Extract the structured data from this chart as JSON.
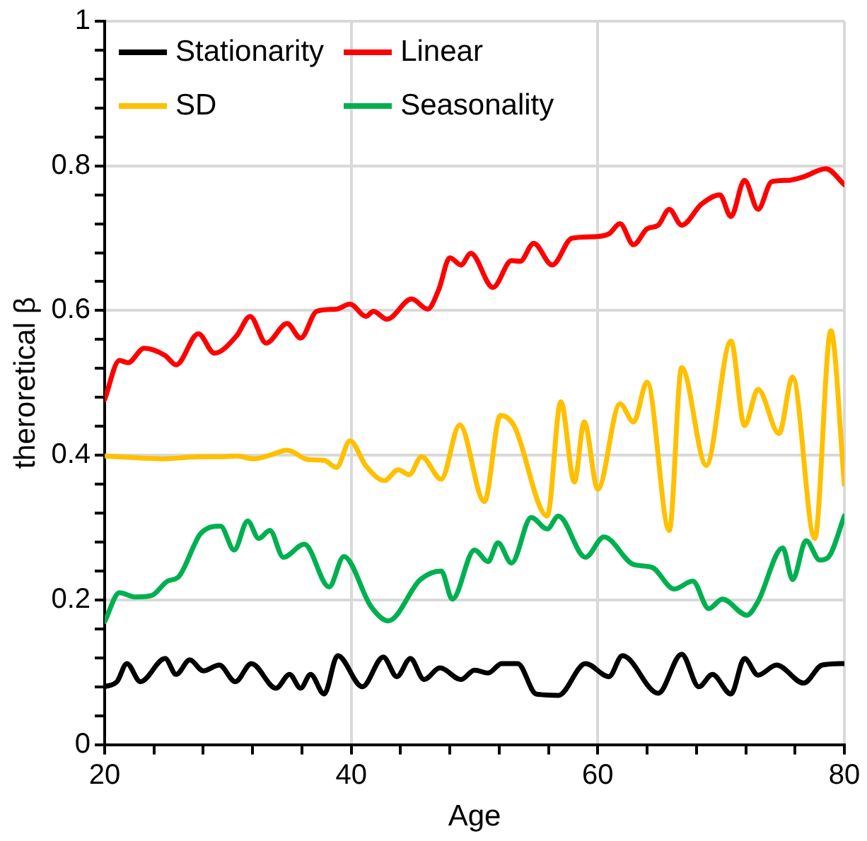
{
  "chart_data": {
    "type": "line",
    "xlabel": "Age",
    "ylabel": "theroretical β",
    "xlim": [
      20,
      80
    ],
    "ylim": [
      0,
      1
    ],
    "xticks": [
      20,
      {
        "value": 24,
        "label": null
      },
      {
        "value": 28,
        "label": null
      },
      {
        "value": 32,
        "label": null
      },
      {
        "value": 36,
        "label": null
      },
      40,
      {
        "value": 44,
        "label": null
      },
      {
        "value": 48,
        "label": null
      },
      {
        "value": 52,
        "label": null
      },
      {
        "value": 56,
        "label": null
      },
      60,
      {
        "value": 64,
        "label": null
      },
      {
        "value": 68,
        "label": null
      },
      {
        "value": 72,
        "label": null
      },
      {
        "value": 76,
        "label": null
      },
      80
    ],
    "yticks": [
      0,
      {
        "value": 0.04,
        "label": null
      },
      {
        "value": 0.08,
        "label": null
      },
      {
        "value": 0.12,
        "label": null
      },
      {
        "value": 0.16,
        "label": null
      },
      0.2,
      {
        "value": 0.24,
        "label": null
      },
      {
        "value": 0.28,
        "label": null
      },
      {
        "value": 0.32,
        "label": null
      },
      {
        "value": 0.36,
        "label": null
      },
      0.4,
      {
        "value": 0.44,
        "label": null
      },
      {
        "value": 0.48,
        "label": null
      },
      {
        "value": 0.52,
        "label": null
      },
      {
        "value": 0.56,
        "label": null
      },
      0.6,
      {
        "value": 0.64,
        "label": null
      },
      {
        "value": 0.68,
        "label": null
      },
      {
        "value": 0.72,
        "label": null
      },
      {
        "value": 0.76,
        "label": null
      },
      0.8,
      {
        "value": 0.84,
        "label": null
      },
      {
        "value": 0.88,
        "label": null
      },
      {
        "value": 0.92,
        "label": null
      },
      {
        "value": 0.96,
        "label": null
      },
      1
    ],
    "grid": true,
    "legend": "top",
    "marker": "none",
    "line_style": "solid",
    "series": [
      {
        "name": "Stationarity",
        "color": "#000000",
        "x": [
          20,
          21,
          21.8,
          22.9,
          24.9,
          25.8,
          26.9,
          28,
          29.3,
          30.6,
          31.9,
          33.9,
          35,
          35.9,
          36.7,
          37.8,
          38.9,
          40.9,
          42.6,
          43.7,
          44.8,
          45.9,
          47.2,
          48.9,
          50,
          51.1,
          52.2,
          53.5,
          55,
          56.8,
          59,
          60.9,
          62,
          64.9,
          66.8,
          68.2,
          69.3,
          70.8,
          71.9,
          73,
          74.5,
          76.7,
          78.2,
          80
        ],
        "values": [
          0.08,
          0.087,
          0.112,
          0.087,
          0.119,
          0.097,
          0.117,
          0.102,
          0.11,
          0.087,
          0.112,
          0.078,
          0.097,
          0.078,
          0.097,
          0.07,
          0.123,
          0.08,
          0.121,
          0.094,
          0.119,
          0.09,
          0.106,
          0.09,
          0.103,
          0.099,
          0.112,
          0.112,
          0.07,
          0.068,
          0.112,
          0.094,
          0.123,
          0.071,
          0.125,
          0.08,
          0.097,
          0.07,
          0.119,
          0.096,
          0.11,
          0.085,
          0.11,
          0.112
        ]
      },
      {
        "name": "Linear",
        "color": "#ff0000",
        "x": [
          20,
          21.2,
          21.9,
          23.2,
          24.9,
          25.8,
          27.6,
          28.9,
          30.7,
          31.8,
          33.1,
          34.8,
          35.9,
          37.2,
          38.8,
          39.9,
          41.2,
          41.8,
          42.9,
          44.9,
          46.2,
          47.1,
          48,
          48.9,
          49.7,
          51.5,
          53,
          53.7,
          54.8,
          56.3,
          57.9,
          59.6,
          60.9,
          61.8,
          62.9,
          64,
          64.9,
          65.8,
          66.8,
          68.4,
          69.9,
          70.8,
          71.9,
          73,
          74.1,
          75.4,
          76.7,
          78.5,
          80
        ],
        "values": [
          0.477,
          0.531,
          0.528,
          0.548,
          0.538,
          0.525,
          0.568,
          0.541,
          0.565,
          0.592,
          0.555,
          0.582,
          0.562,
          0.599,
          0.602,
          0.609,
          0.592,
          0.599,
          0.588,
          0.616,
          0.602,
          0.629,
          0.673,
          0.663,
          0.679,
          0.632,
          0.669,
          0.668,
          0.693,
          0.663,
          0.7,
          0.702,
          0.706,
          0.72,
          0.691,
          0.713,
          0.718,
          0.74,
          0.718,
          0.747,
          0.76,
          0.73,
          0.78,
          0.74,
          0.778,
          0.78,
          0.785,
          0.796,
          0.774
        ]
      },
      {
        "name": "SD",
        "color": "#ffc000",
        "x": [
          20,
          24.9,
          27.6,
          29.4,
          30.7,
          32.1,
          33.4,
          34.8,
          36.5,
          37.8,
          38.8,
          39.9,
          41.2,
          42.7,
          43.8,
          44.7,
          45.7,
          47.3,
          48.8,
          50.8,
          52.1,
          53.2,
          55.9,
          57,
          58.1,
          58.9,
          60,
          61.8,
          62.9,
          64,
          65.8,
          66.8,
          68.8,
          70.8,
          71.9,
          73,
          74.7,
          75.8,
          77.6,
          78.9,
          80
        ],
        "values": [
          0.399,
          0.395,
          0.398,
          0.398,
          0.399,
          0.395,
          0.4,
          0.407,
          0.394,
          0.393,
          0.383,
          0.42,
          0.385,
          0.365,
          0.38,
          0.373,
          0.398,
          0.367,
          0.442,
          0.336,
          0.455,
          0.441,
          0.316,
          0.474,
          0.363,
          0.446,
          0.353,
          0.471,
          0.446,
          0.501,
          0.296,
          0.521,
          0.386,
          0.558,
          0.441,
          0.491,
          0.43,
          0.508,
          0.285,
          0.572,
          0.36
        ]
      },
      {
        "name": "Seasonality",
        "color": "#00b050",
        "x": [
          20,
          21.2,
          22.5,
          23.8,
          25.1,
          26,
          27.8,
          29.4,
          30.5,
          31.6,
          32.5,
          33.4,
          34.5,
          36.2,
          38.2,
          39.4,
          41.6,
          43,
          45.6,
          47.3,
          48.2,
          50,
          51.1,
          51.9,
          53,
          54.6,
          55.9,
          56.8,
          59,
          60.5,
          62.9,
          64.4,
          66.2,
          67.7,
          69,
          70.1,
          72.1,
          73,
          75,
          75.8,
          76.9,
          78,
          78.7,
          80
        ],
        "values": [
          0.17,
          0.21,
          0.204,
          0.206,
          0.226,
          0.232,
          0.292,
          0.302,
          0.269,
          0.309,
          0.285,
          0.296,
          0.259,
          0.277,
          0.218,
          0.26,
          0.191,
          0.171,
          0.228,
          0.24,
          0.201,
          0.269,
          0.253,
          0.279,
          0.251,
          0.314,
          0.298,
          0.316,
          0.259,
          0.287,
          0.249,
          0.245,
          0.215,
          0.226,
          0.188,
          0.201,
          0.179,
          0.198,
          0.272,
          0.228,
          0.282,
          0.255,
          0.259,
          0.316
        ]
      }
    ]
  }
}
